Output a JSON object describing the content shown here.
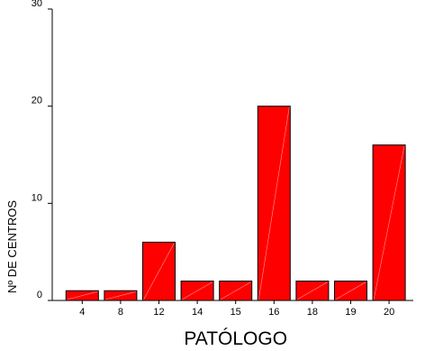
{
  "chart_data": {
    "type": "bar",
    "title": "",
    "xlabel": "PATÓLOGO",
    "ylabel": "Nº DE CENTROS",
    "categories": [
      "4",
      "8",
      "12",
      "14",
      "15",
      "16",
      "18",
      "19",
      "20"
    ],
    "values": [
      1,
      1,
      6,
      2,
      2,
      20,
      2,
      2,
      16
    ],
    "ylim": [
      0,
      30
    ],
    "yticks": [
      "0",
      "10",
      "20",
      "30"
    ],
    "grid": false,
    "legend": "none",
    "colors": {
      "bar_fill": "#ff0000",
      "bar_stroke": "#000000",
      "bar_highlight": "#ff9a9a",
      "axis": "#000000"
    }
  }
}
